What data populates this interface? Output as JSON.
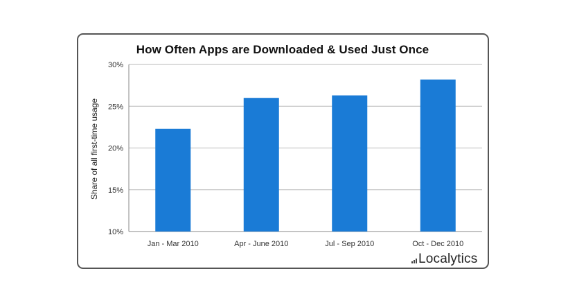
{
  "chart_data": {
    "type": "bar",
    "title": "How Often Apps are Downloaded & Used Just Once",
    "xlabel": "",
    "ylabel": "Share of all first-time usage",
    "categories": [
      "Jan - Mar 2010",
      "Apr - June 2010",
      "Jul - Sep 2010",
      "Oct - Dec 2010"
    ],
    "values": [
      22.3,
      26.0,
      26.3,
      28.2
    ],
    "ylim": [
      10,
      30
    ],
    "yticks": [
      10,
      15,
      20,
      25,
      30
    ],
    "ytick_labels": [
      "10%",
      "15%",
      "20%",
      "25%",
      "30%"
    ],
    "grid": true,
    "legend": "none",
    "bar_color": "#1a7bd6"
  },
  "branding": {
    "name": "Localytics"
  },
  "colors": {
    "grid": "#b8b8b8",
    "axis": "#888888",
    "frame": "#555555"
  }
}
